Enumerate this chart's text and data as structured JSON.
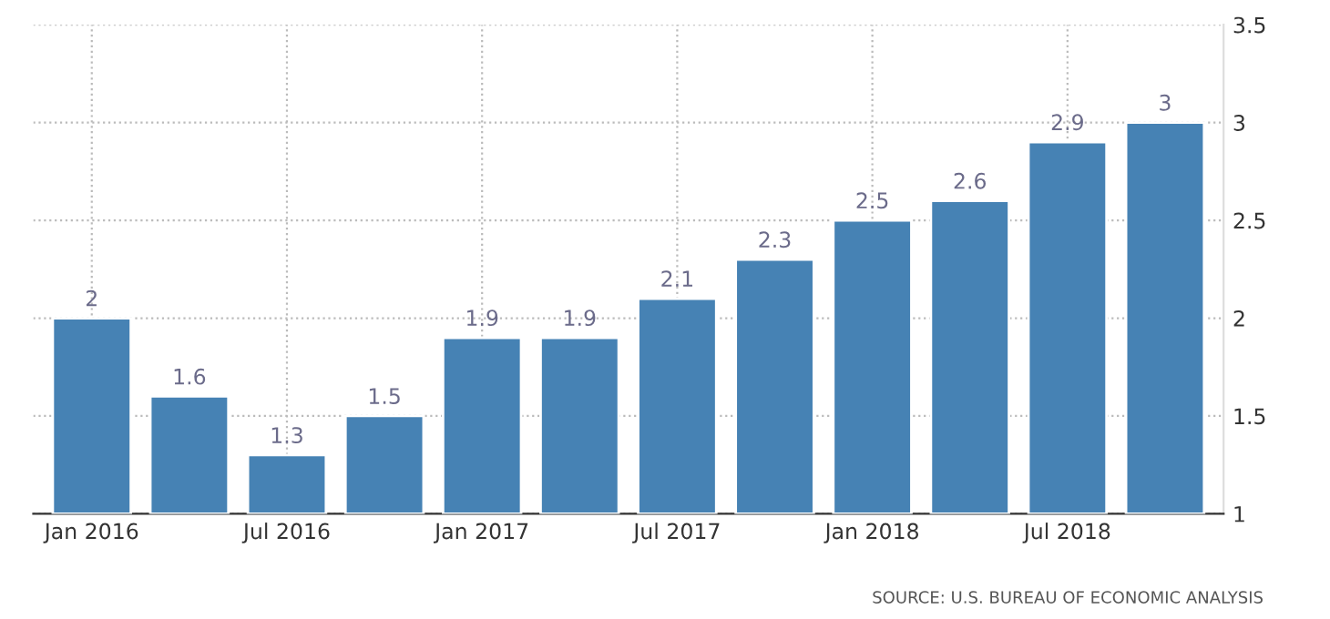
{
  "chart_data": {
    "type": "bar",
    "categories": [
      "Jan 2016",
      null,
      "Jul 2016",
      null,
      "Jan 2017",
      null,
      "Jul 2017",
      null,
      "Jan 2018",
      null,
      "Jul 2018",
      null
    ],
    "values": [
      2,
      1.6,
      1.3,
      1.5,
      1.9,
      1.9,
      2.1,
      2.3,
      2.5,
      2.6,
      2.9,
      3
    ],
    "color": "#4682b4",
    "ylim": [
      1,
      3.5
    ],
    "yticks": [
      1,
      1.5,
      2,
      2.5,
      3,
      3.5
    ],
    "grid": true,
    "data_labels": true,
    "annotations": [
      "SOURCE: U.S. BUREAU OF ECONOMIC ANALYSIS"
    ]
  }
}
